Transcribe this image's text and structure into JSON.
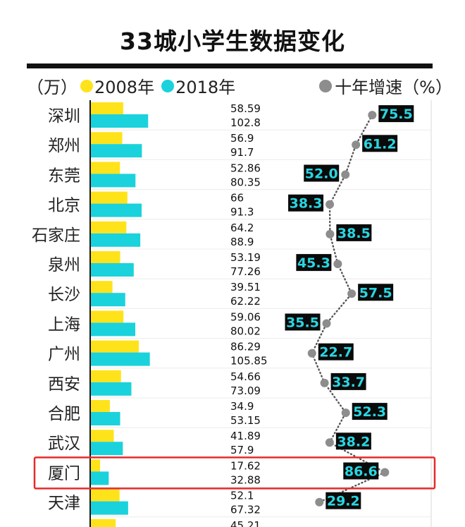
{
  "chart_data": {
    "type": "bar",
    "title": "33城小学生数据变化",
    "unit_label": "（万）",
    "legend": {
      "series_2008": "2008年",
      "series_2018": "2018年",
      "growth": "十年增速（%）"
    },
    "colors": {
      "y2008": "#ffe31a",
      "y2018": "#1ad2dc",
      "growth_dot": "#8d8d8d",
      "label_bg": "#0a0a0a",
      "label_text": "#29d6e2",
      "highlight": "#e52b2b"
    },
    "categories": [
      "深圳",
      "郑州",
      "东莞",
      "北京",
      "石家庄",
      "泉州",
      "长沙",
      "上海",
      "广州",
      "西安",
      "合肥",
      "武汉",
      "厦门",
      "天津",
      ""
    ],
    "series": [
      {
        "name": "2008年",
        "values": [
          58.59,
          56.9,
          52.86,
          66,
          64.2,
          53.19,
          39.51,
          59.06,
          86.29,
          54.66,
          34.9,
          41.89,
          17.62,
          52.1,
          45.21
        ]
      },
      {
        "name": "2018年",
        "values": [
          102.8,
          91.7,
          80.35,
          91.3,
          88.9,
          77.26,
          62.22,
          80.02,
          105.85,
          73.09,
          53.15,
          57.9,
          32.88,
          67.32,
          null
        ]
      }
    ],
    "value_labels_2008": [
      "58.59",
      "56.9",
      "52.86",
      "66",
      "64.2",
      "53.19",
      "39.51",
      "59.06",
      "86.29",
      "54.66",
      "34.9",
      "41.89",
      "17.62",
      "52.1",
      "45.21"
    ],
    "value_labels_2018": [
      "102.8",
      "91.7",
      "80.35",
      "91.3",
      "88.9",
      "77.26",
      "62.22",
      "80.02",
      "105.85",
      "73.09",
      "53.15",
      "57.9",
      "32.88",
      "67.32",
      ""
    ],
    "growth_rate": [
      75.5,
      61.2,
      52.0,
      38.3,
      38.5,
      45.3,
      57.5,
      35.5,
      22.7,
      33.7,
      52.3,
      38.2,
      86.6,
      29.2,
      null
    ],
    "growth_labels": [
      "75.5",
      "61.2",
      "52.0",
      "38.3",
      "38.5",
      "45.3",
      "57.5",
      "35.5",
      "22.7",
      "33.7",
      "52.3",
      "38.2",
      "86.6",
      "29.2",
      ""
    ],
    "growth_label_side": [
      "right",
      "right",
      "left",
      "left",
      "right",
      "left",
      "right",
      "left",
      "right",
      "right",
      "right",
      "right",
      "left",
      "right",
      "left"
    ],
    "highlight_category": "厦门",
    "bar_value_max": 130
  }
}
